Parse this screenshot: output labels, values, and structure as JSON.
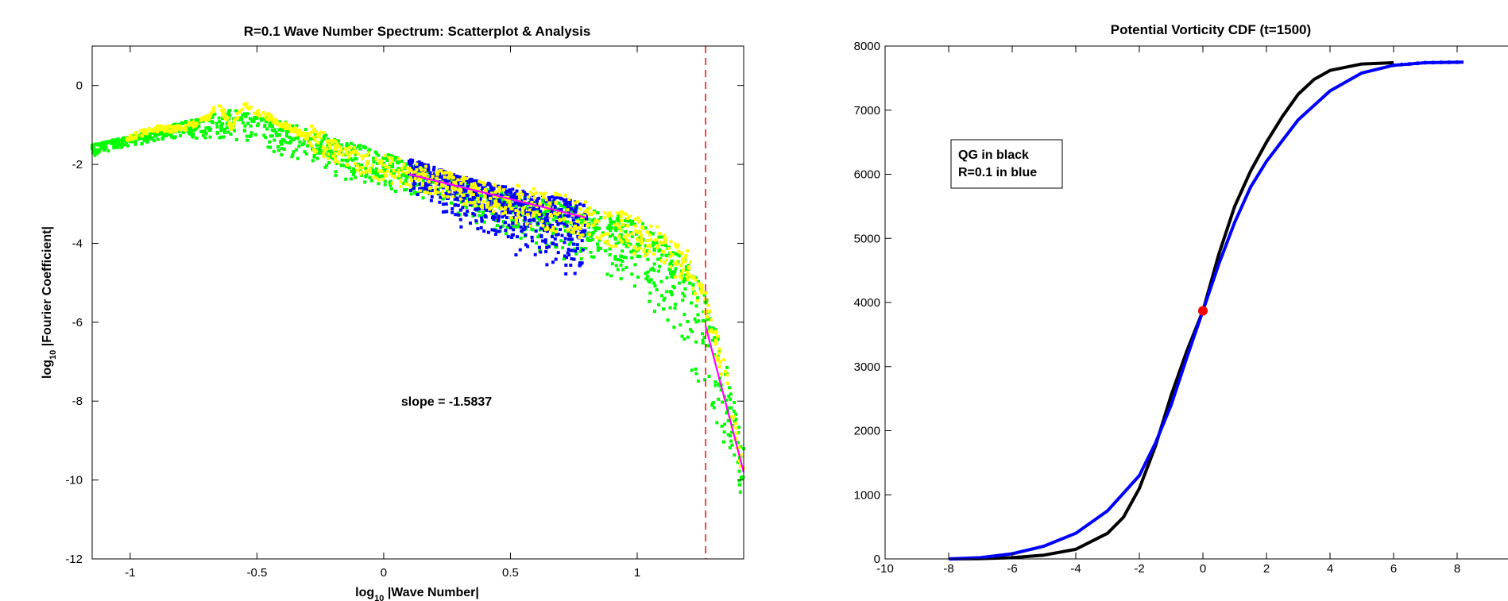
{
  "chart_data": [
    {
      "type": "scatter",
      "title": "R=0.1 Wave Number Spectrum:  Scatterplot & Analysis",
      "xlabel": {
        "base": "log",
        "sub": "10",
        "rest": " |Wave Number|"
      },
      "ylabel": {
        "base": "log",
        "sub": "10",
        "rest": " |Fourier Coefficient|"
      },
      "xlim": [
        -1.15,
        1.42
      ],
      "ylim": [
        -12,
        1
      ],
      "xticks": [
        -1,
        -0.5,
        0,
        0.5,
        1
      ],
      "xtick_labels": [
        "-1",
        "-0.5",
        "0",
        "0.5",
        "1"
      ],
      "yticks": [
        0,
        -2,
        -4,
        -6,
        -8,
        -10,
        -12
      ],
      "ytick_labels": [
        "0",
        "-2",
        "-4",
        "-6",
        "-8",
        "-10",
        "-12"
      ],
      "grid": false,
      "annotation": "slope = -1.5837",
      "cutoff_line": {
        "x": 1.27,
        "color": "#ff0000",
        "style": "dashed"
      },
      "series": [
        {
          "color": "#00ff00",
          "marker": "dot",
          "envelope_x": [
            -1.15,
            -0.9,
            -0.6,
            -0.4,
            -0.2,
            0,
            0.2,
            0.4,
            0.6,
            0.8,
            1.0,
            1.1,
            1.2,
            1.27,
            1.35,
            1.42
          ],
          "upper": [
            -1.5,
            -1.1,
            -0.6,
            -0.9,
            -1.3,
            -1.7,
            -2.2,
            -2.6,
            -2.85,
            -3.1,
            -3.4,
            -3.8,
            -4.5,
            -5.3,
            -7.0,
            -9.2
          ],
          "lower": [
            -1.8,
            -1.4,
            -1.4,
            -1.8,
            -2.4,
            -2.6,
            -3.0,
            -3.6,
            -4.2,
            -4.6,
            -5.3,
            -6.0,
            -7.0,
            -8.0,
            -9.5,
            -10.8
          ]
        },
        {
          "color": "#0000ff",
          "marker": "dot",
          "envelope_x": [
            0.1,
            0.3,
            0.5,
            0.7,
            0.8
          ],
          "upper": [
            -1.85,
            -2.3,
            -2.6,
            -2.85,
            -3.0
          ],
          "lower": [
            -2.8,
            -3.6,
            -4.3,
            -4.8,
            -5.0
          ]
        },
        {
          "color": "#ffff00",
          "marker": "dot",
          "trend_x": [
            -1.02,
            -0.9,
            -0.8,
            -0.7,
            -0.65,
            -0.6,
            -0.55,
            -0.5,
            -0.45,
            -0.4,
            -0.3,
            -0.2,
            -0.1,
            0,
            0.2,
            0.4,
            0.6,
            0.8,
            1.0,
            1.1,
            1.2,
            1.27,
            1.35,
            1.42
          ],
          "trend_y": [
            -1.35,
            -1.1,
            -1.1,
            -0.85,
            -0.5,
            -1.05,
            -0.45,
            -0.7,
            -0.8,
            -1.0,
            -1.3,
            -1.6,
            -1.9,
            -2.1,
            -2.45,
            -2.8,
            -3.1,
            -3.4,
            -3.8,
            -4.1,
            -4.7,
            -5.5,
            -7.5,
            -9.9
          ]
        }
      ],
      "fit_lines": [
        {
          "color": "#ff00ff",
          "x": [
            0.1,
            0.8
          ],
          "y": [
            -2.25,
            -3.35
          ]
        },
        {
          "color": "#ff00ff",
          "x": [
            1.27,
            1.42
          ],
          "y": [
            -6.1,
            -9.8
          ]
        }
      ]
    },
    {
      "type": "line",
      "title": "Potential Vorticity CDF  (t=1500)",
      "xlabel": "",
      "ylabel": "",
      "xlim": [
        -10,
        10
      ],
      "ylim": [
        0,
        8000
      ],
      "xticks": [
        -10,
        -8,
        -6,
        -4,
        -2,
        0,
        2,
        4,
        6,
        8
      ],
      "xtick_labels": [
        "-10",
        "-8",
        "-6",
        "-4",
        "-2",
        "0",
        "2",
        "4",
        "6",
        "8"
      ],
      "yticks": [
        0,
        1000,
        2000,
        3000,
        4000,
        5000,
        6000,
        7000,
        8000
      ],
      "ytick_labels": [
        "0",
        "1000",
        "2000",
        "3000",
        "4000",
        "5000",
        "6000",
        "7000",
        "8000"
      ],
      "grid": false,
      "legend_text": [
        "QG in black",
        "R=0.1 in blue"
      ],
      "legend_placement": "upper-left",
      "marker_point": {
        "x": 0,
        "y": 3870,
        "color": "#ff0000"
      },
      "series": [
        {
          "color": "#000000",
          "x": [
            -8,
            -7,
            -6,
            -5,
            -4,
            -3,
            -2.5,
            -2,
            -1.5,
            -1,
            -0.5,
            0,
            0.5,
            1,
            1.5,
            2,
            2.5,
            3,
            3.5,
            4,
            5,
            6
          ],
          "y": [
            0,
            5,
            20,
            60,
            150,
            400,
            650,
            1100,
            1750,
            2550,
            3250,
            3870,
            4750,
            5500,
            6050,
            6500,
            6900,
            7250,
            7480,
            7620,
            7720,
            7740
          ]
        },
        {
          "color": "#0000ff",
          "x": [
            -8,
            -7,
            -6,
            -5,
            -4,
            -3,
            -2,
            -1.5,
            -1,
            -0.5,
            0,
            0.5,
            1,
            1.5,
            2,
            3,
            4,
            5,
            6,
            7,
            8.2
          ],
          "y": [
            0,
            20,
            80,
            200,
            400,
            750,
            1300,
            1800,
            2400,
            3150,
            3870,
            4600,
            5250,
            5800,
            6200,
            6850,
            7300,
            7580,
            7700,
            7740,
            7750
          ]
        }
      ]
    }
  ]
}
